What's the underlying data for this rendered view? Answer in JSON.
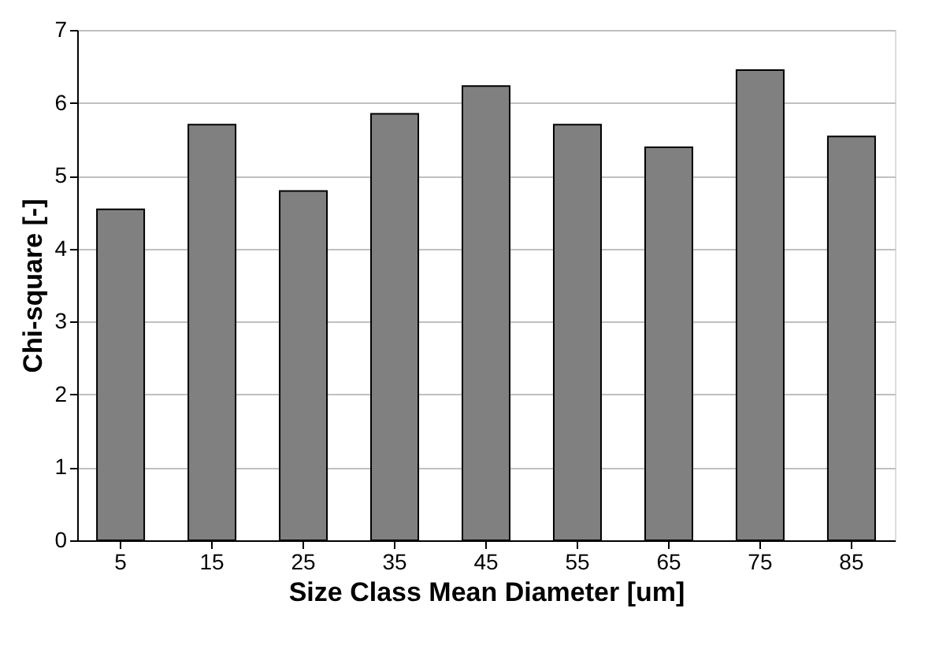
{
  "chart_data": {
    "type": "bar",
    "xlabel": "Size Class Mean Diameter  [um]",
    "ylabel": "Chi-square [-]",
    "categories": [
      "5",
      "15",
      "25",
      "35",
      "45",
      "55",
      "65",
      "75",
      "85"
    ],
    "values": [
      4.54,
      5.7,
      4.79,
      5.85,
      6.23,
      5.7,
      5.39,
      6.45,
      5.54
    ],
    "color": "#808080",
    "ylim": [
      0,
      7
    ],
    "yticks": [
      0,
      1,
      2,
      3,
      4,
      5,
      6,
      7
    ],
    "grid": "y"
  }
}
